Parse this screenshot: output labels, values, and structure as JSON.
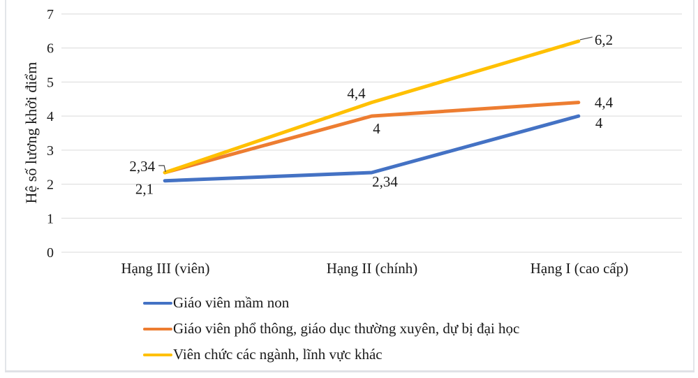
{
  "chart_data": {
    "type": "line",
    "title": "",
    "ylabel": "Hệ số lương khởi điểm",
    "xlabel": "",
    "categories": [
      "Hạng III (viên)",
      "Hạng II (chính)",
      "Hạng I (cao cấp)"
    ],
    "yticks": [
      "0",
      "1",
      "2",
      "3",
      "4",
      "5",
      "6",
      "7"
    ],
    "ylim": [
      0,
      7
    ],
    "grid": true,
    "legend_position": "bottom-left",
    "series": [
      {
        "name": "Giáo viên mầm non",
        "color": "#4472C4",
        "values": [
          2.1,
          2.34,
          4
        ],
        "point_labels": [
          "2,1",
          "2,34",
          "4"
        ]
      },
      {
        "name": "Giáo viên phổ thông, giáo dục thường xuyên, dự bị đại học",
        "color": "#ED7D31",
        "values": [
          2.34,
          4,
          4.4
        ],
        "point_labels": [
          null,
          "4",
          "4,4"
        ]
      },
      {
        "name": "Viên chức các ngành, lĩnh vực khác",
        "color": "#FFC000",
        "values": [
          2.34,
          4.4,
          6.2
        ],
        "point_labels": [
          "2,34",
          "4,4",
          "6,2"
        ]
      }
    ]
  },
  "colors": {
    "series_blue": "#4472C4",
    "series_orange": "#ED7D31",
    "series_yellow": "#FFC000",
    "gridline": "#D9D9D9",
    "text": "#1A1A1A",
    "leader_line": "#404040",
    "card_border": "#E3E5E9",
    "background": "#FFFFFF"
  }
}
